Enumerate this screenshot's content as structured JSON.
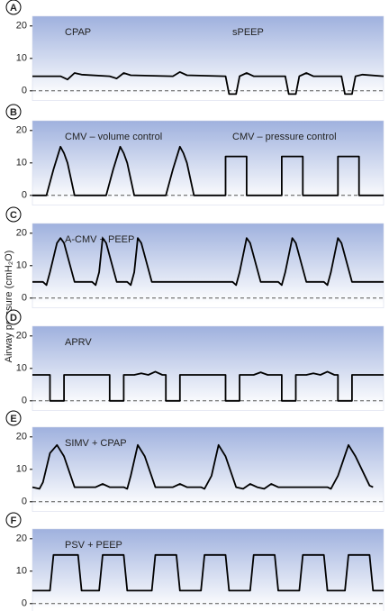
{
  "ylabel": "Airway pressure (cmH₂O)",
  "chart_data": [
    {
      "type": "line",
      "label": "A",
      "annotations": [
        "CPAP",
        "sPEEP"
      ],
      "xlim": [
        0,
        100
      ],
      "ylim": [
        -3,
        23
      ],
      "yticks": [
        0,
        10,
        20
      ],
      "x": [
        0,
        8,
        10,
        12,
        14,
        22,
        24,
        26,
        28,
        40,
        42,
        44,
        55,
        56,
        58,
        59,
        61,
        63,
        72,
        73,
        75,
        76,
        78,
        80,
        88,
        89,
        91,
        92,
        94,
        100
      ],
      "series": [
        {
          "color": "#000000",
          "values": [
            4.5,
            4.5,
            3.5,
            5.5,
            5,
            4.5,
            3.8,
            5.5,
            4.8,
            4.5,
            5.8,
            4.8,
            4.5,
            -1,
            -1,
            4.5,
            5.5,
            4.5,
            4.5,
            -1,
            -1,
            4.5,
            5.5,
            4.5,
            4.5,
            -1,
            -1,
            4.5,
            5,
            4.5
          ]
        }
      ]
    },
    {
      "type": "line",
      "label": "B",
      "annotations": [
        "CMV – volume control",
        "CMV – pressure control"
      ],
      "xlim": [
        0,
        100
      ],
      "ylim": [
        -3,
        23
      ],
      "yticks": [
        0,
        10,
        20
      ],
      "x": [
        0,
        4,
        6,
        8,
        9,
        10,
        12,
        21,
        23,
        25,
        26,
        27,
        29,
        38,
        40,
        42,
        43,
        44,
        46,
        55,
        55,
        61,
        61,
        71,
        71,
        77,
        77,
        87,
        87,
        93,
        93,
        100
      ],
      "series": [
        {
          "color": "#000000",
          "values": [
            0,
            0,
            8,
            15,
            13,
            10,
            0,
            0,
            8,
            15,
            13,
            10,
            0,
            0,
            8,
            15,
            13,
            10,
            0,
            0,
            12,
            12,
            0,
            0,
            12,
            12,
            0,
            0,
            12,
            12,
            0,
            0
          ]
        }
      ]
    },
    {
      "type": "line",
      "label": "C",
      "annotations": [
        "A-CMV + PEEP"
      ],
      "xlim": [
        0,
        100
      ],
      "ylim": [
        -3,
        23
      ],
      "yticks": [
        0,
        10,
        20
      ],
      "x": [
        0,
        3,
        4,
        5,
        7,
        8,
        9,
        12,
        17,
        18,
        19,
        20,
        21,
        24,
        27,
        28,
        29,
        30,
        31,
        34,
        52,
        57,
        58,
        59,
        61,
        62,
        65,
        70,
        71,
        72,
        74,
        75,
        78,
        83,
        84,
        85,
        87,
        88,
        91,
        100
      ],
      "series": [
        {
          "color": "#000000",
          "values": [
            5,
            5,
            4,
            8,
            17,
            18.5,
            17,
            5,
            5,
            4,
            8,
            18.5,
            17,
            5,
            5,
            4,
            8,
            18.5,
            17,
            5,
            5,
            5,
            4,
            8,
            18.5,
            17,
            5,
            5,
            4,
            8,
            18.5,
            17,
            5,
            5,
            4,
            8,
            18.5,
            17,
            5,
            5
          ]
        }
      ]
    },
    {
      "type": "line",
      "label": "D",
      "annotations": [
        "APRV"
      ],
      "xlim": [
        0,
        100
      ],
      "ylim": [
        -3,
        23
      ],
      "yticks": [
        0,
        10,
        20
      ],
      "x": [
        0,
        5,
        5,
        9,
        9,
        22,
        22,
        26,
        26,
        29,
        31,
        33,
        35,
        37,
        38,
        38,
        42,
        42,
        55,
        55,
        59,
        59,
        63,
        65,
        67,
        71,
        71,
        75,
        75,
        78,
        80,
        82,
        84,
        86,
        87,
        87,
        91,
        91,
        100
      ],
      "series": [
        {
          "color": "#000000",
          "values": [
            8,
            8,
            0,
            0,
            8,
            8,
            0,
            0,
            8,
            8,
            8.5,
            8,
            9,
            8,
            8,
            0,
            0,
            8,
            8,
            0,
            0,
            8,
            8,
            8.8,
            8,
            8,
            0,
            0,
            8,
            8,
            8.5,
            8,
            9,
            8,
            8,
            0,
            0,
            8,
            8
          ]
        }
      ]
    },
    {
      "type": "line",
      "label": "E",
      "annotations": [
        "SIMV + CPAP"
      ],
      "xlim": [
        0,
        100
      ],
      "ylim": [
        -3,
        23
      ],
      "yticks": [
        0,
        10,
        20
      ],
      "x": [
        0,
        2,
        3,
        5,
        7,
        9,
        12,
        18,
        20,
        22,
        26,
        27,
        28,
        30,
        32,
        35,
        40,
        42,
        44,
        48,
        49,
        51,
        53,
        55,
        58,
        60,
        62,
        64,
        66,
        68,
        70,
        84,
        85,
        87,
        90,
        92,
        96,
        97
      ],
      "series": [
        {
          "color": "#000000",
          "values": [
            4.5,
            4,
            6,
            15,
            17.5,
            14,
            4.5,
            4.5,
            5.5,
            4.5,
            4.5,
            4,
            8,
            17.5,
            14,
            4.5,
            4.5,
            5.5,
            4.5,
            4.5,
            4,
            8,
            17.5,
            14,
            4.5,
            4,
            5.5,
            4.5,
            4,
            5.5,
            4.5,
            4.5,
            4,
            8,
            17.5,
            14,
            5,
            4.5
          ]
        }
      ]
    },
    {
      "type": "line",
      "label": "F",
      "annotations": [
        "PSV + PEEP"
      ],
      "xlim": [
        0,
        100
      ],
      "ylim": [
        -3,
        23
      ],
      "yticks": [
        0,
        10,
        20
      ],
      "x": [
        0,
        5,
        6,
        13,
        14,
        19,
        20,
        26,
        27,
        34,
        35,
        41,
        42,
        48,
        49,
        55,
        56,
        62,
        63,
        69,
        70,
        76,
        77,
        83,
        84,
        89,
        90,
        96,
        97,
        100
      ],
      "series": [
        {
          "color": "#000000",
          "values": [
            4,
            4,
            15,
            15,
            4,
            4,
            15,
            15,
            4,
            4,
            15,
            15,
            4,
            4,
            15,
            15,
            4,
            4,
            15,
            15,
            4,
            4,
            15,
            15,
            4,
            4,
            15,
            15,
            4,
            4
          ]
        }
      ]
    }
  ]
}
